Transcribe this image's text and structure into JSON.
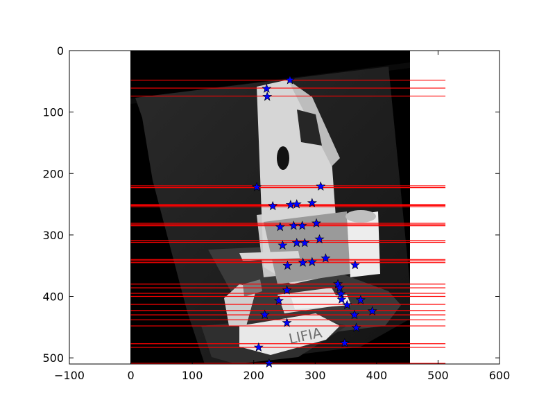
{
  "chart_data": {
    "type": "scatter",
    "title": "",
    "xlabel": "",
    "ylabel": "",
    "xlim": [
      -100,
      600
    ],
    "ylim": [
      510,
      0
    ],
    "y_inverted": true,
    "grid": false,
    "x_ticks": [
      "−100",
      "0",
      "100",
      "200",
      "300",
      "400",
      "500",
      "600"
    ],
    "x_tick_values": [
      -100,
      0,
      100,
      200,
      300,
      400,
      500,
      600
    ],
    "y_ticks": [
      "0",
      "100",
      "200",
      "300",
      "400",
      "500"
    ],
    "y_tick_values": [
      0,
      100,
      200,
      300,
      400,
      500
    ],
    "background_image": "grayscale photo of a cardboard house model, a mug and a box labeled LIFIA, slightly rotated",
    "image_extent": {
      "x": [
        0,
        454
      ],
      "y": [
        0,
        510
      ]
    },
    "epipolar_lines": {
      "color": "#ff0000",
      "x_range": [
        0,
        512
      ],
      "y": [
        48,
        61,
        74,
        220,
        223,
        250,
        252,
        254,
        281,
        283,
        285,
        309,
        312,
        340,
        342,
        345,
        380,
        386,
        395,
        400,
        413,
        423,
        430,
        438,
        448,
        477,
        483,
        509
      ]
    },
    "points": {
      "marker": "star",
      "color": "#0000ff",
      "x": [
        259,
        221,
        222,
        205,
        309,
        231,
        260,
        270,
        295,
        243,
        265,
        279,
        302,
        247,
        270,
        283,
        307,
        255,
        280,
        295,
        317,
        365,
        337,
        340,
        342,
        254,
        343,
        241,
        374,
        352,
        218,
        364,
        393,
        254,
        367,
        348,
        208,
        225
      ],
      "y": [
        48,
        62,
        75,
        222,
        221,
        253,
        251,
        250,
        248,
        287,
        285,
        285,
        281,
        317,
        313,
        313,
        307,
        350,
        345,
        344,
        338,
        349,
        380,
        386,
        396,
        390,
        405,
        407,
        406,
        414,
        430,
        430,
        424,
        443,
        451,
        476,
        483,
        509
      ]
    }
  }
}
